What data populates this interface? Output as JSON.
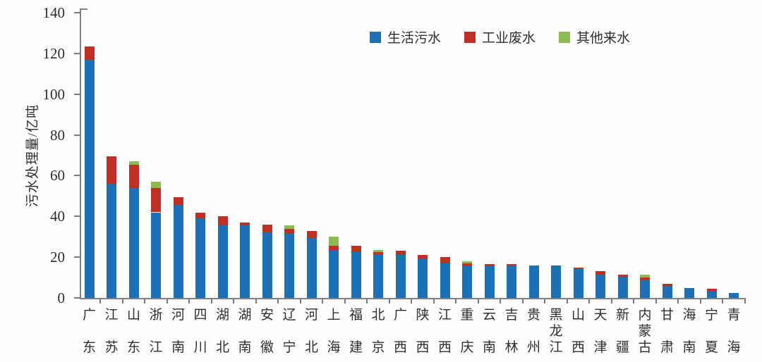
{
  "chart_data": {
    "type": "bar",
    "stacked": true,
    "title": "",
    "xlabel": "",
    "ylabel": "污水处理量/亿吨",
    "ylim": [
      0,
      140
    ],
    "yticks": [
      0,
      20,
      40,
      60,
      80,
      100,
      120,
      140
    ],
    "grid": false,
    "legend_position": "top-center",
    "categories": [
      "广东",
      "江苏",
      "山东",
      "浙江",
      "河南",
      "四川",
      "湖北",
      "湖南",
      "安徽",
      "辽宁",
      "河北",
      "上海",
      "福建",
      "北京",
      "广西",
      "陕西",
      "江西",
      "重庆",
      "云南",
      "吉林",
      "贵州",
      "黑龙江",
      "山西",
      "天津",
      "新疆",
      "内蒙古",
      "甘肃",
      "海南",
      "宁夏",
      "青海"
    ],
    "series": [
      {
        "name": "生活污水",
        "color": "#1C70B6",
        "values": [
          117,
          56,
          54,
          42,
          45.5,
          39,
          35.5,
          35.5,
          32,
          31.5,
          29.5,
          23.5,
          22.5,
          21.5,
          21,
          19.5,
          17,
          16,
          16,
          16,
          16,
          15.5,
          14.5,
          11.5,
          10.5,
          8.5,
          6,
          5,
          3.5,
          2.5
        ]
      },
      {
        "name": "工业废水",
        "color": "#BE2F26",
        "values": [
          6.5,
          13.5,
          11.5,
          12,
          4,
          3,
          4.5,
          1.5,
          4,
          2.5,
          3.5,
          2,
          3,
          1,
          2,
          1.5,
          3,
          1,
          0.5,
          0.5,
          0,
          0.5,
          0.5,
          1.5,
          1,
          1.5,
          1,
          0,
          1,
          0
        ]
      },
      {
        "name": "其他来水",
        "color": "#8CBB52",
        "values": [
          0,
          0,
          1.5,
          3,
          0,
          0,
          0,
          0,
          0,
          1.5,
          0,
          4.5,
          0,
          1,
          0,
          0,
          0,
          1,
          0,
          0,
          0,
          0,
          0,
          0,
          0,
          1.5,
          0,
          0,
          0,
          0
        ]
      }
    ]
  }
}
